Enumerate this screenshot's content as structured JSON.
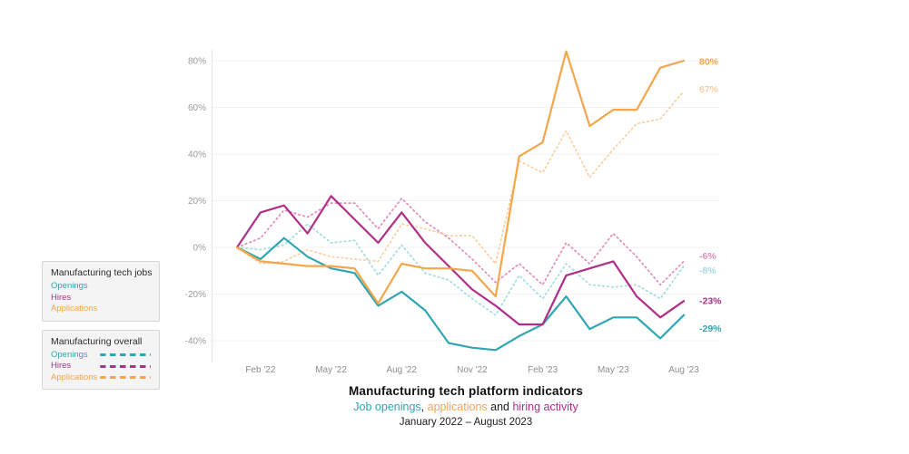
{
  "title_block": {
    "title": "Manufacturing tech platform indicators",
    "subtitle_parts": [
      {
        "text": "Job openings",
        "color": "#2fa6b1"
      },
      {
        "text": ", ",
        "color": "#1c1c1c"
      },
      {
        "text": "applications",
        "color": "#f5a54c"
      },
      {
        "text": " and ",
        "color": "#1c1c1c"
      },
      {
        "text": "hiring activity",
        "color": "#b02e88"
      }
    ],
    "date_range": "January 2022 – August 2023"
  },
  "legend": {
    "boxes": [
      {
        "title": "Manufacturing tech jobs",
        "items": [
          {
            "label": "Openings",
            "color": "#2fa6b1",
            "dashed": false
          },
          {
            "label": "Hires",
            "color": "#b02e88",
            "dashed": false
          },
          {
            "label": "Applications",
            "color": "#f5a54c",
            "dashed": false
          }
        ]
      },
      {
        "title": "Manufacturing overall",
        "items": [
          {
            "label": "Openings",
            "color": "#2fa6b1",
            "dashed": true
          },
          {
            "label": "Hires",
            "color": "#b02e88",
            "dashed": true
          },
          {
            "label": "Applications",
            "color": "#f5a54c",
            "dashed": true
          }
        ]
      }
    ]
  },
  "chart_data": {
    "type": "line",
    "x": [
      "Jan '22",
      "Feb '22",
      "Mar '22",
      "Apr '22",
      "May '22",
      "Jun '22",
      "Jul '22",
      "Aug '22",
      "Sep '22",
      "Oct '22",
      "Nov '22",
      "Dec '22",
      "Jan '23",
      "Feb '23",
      "Mar '23",
      "Apr '23",
      "May '23",
      "Jun '23",
      "Jul '23",
      "Aug '23"
    ],
    "x_ticks": [
      {
        "i": 1,
        "label": "Feb '22"
      },
      {
        "i": 4,
        "label": "May '22"
      },
      {
        "i": 7,
        "label": "Aug '22"
      },
      {
        "i": 10,
        "label": "Nov '22"
      },
      {
        "i": 13,
        "label": "Feb '23"
      },
      {
        "i": 16,
        "label": "May '23"
      },
      {
        "i": 19,
        "label": "Aug '23"
      }
    ],
    "y_ticks": [
      80,
      60,
      40,
      20,
      0,
      -20,
      -40
    ],
    "y_tick_suffix": "%",
    "ylim": [
      -50,
      90
    ],
    "grid": "horizontal",
    "legend_position": "left",
    "series": [
      {
        "name": "Manufacturing tech jobs — Openings",
        "style": "solid",
        "color": "#2fa6b1",
        "end_label": "-29%",
        "label_dy": 15,
        "values": [
          0,
          -5,
          4,
          -4,
          -9,
          -11,
          -25,
          -19,
          -27,
          -41,
          -43,
          -44,
          -38,
          -33,
          -21,
          -35,
          -30,
          -30,
          -39,
          -29
        ]
      },
      {
        "name": "Manufacturing tech jobs — Hires",
        "style": "solid",
        "color": "#b02e88",
        "end_label": "-23%",
        "label_dy": 0,
        "values": [
          0,
          15,
          18,
          6,
          22,
          12,
          2,
          15,
          2,
          -8,
          -18,
          -25,
          -33,
          -33,
          -12,
          -9,
          -6,
          -21,
          -30,
          -23
        ]
      },
      {
        "name": "Manufacturing tech jobs — Applications",
        "style": "solid",
        "color": "#f5a54c",
        "end_label": "80%",
        "label_dy": 1,
        "values": [
          0,
          -6,
          -7,
          -8,
          -8,
          -9,
          -24,
          -7,
          -9,
          -9,
          -10,
          -21,
          39,
          45,
          84,
          52,
          59,
          59,
          77,
          80
        ]
      },
      {
        "name": "Manufacturing overall — Openings",
        "style": "dotted",
        "color": "#a5dbe0",
        "end_label": "-8%",
        "label_dy": 5,
        "values": [
          0,
          -1,
          1,
          10,
          2,
          3,
          -12,
          1,
          -11,
          -14,
          -22,
          -29,
          -12,
          -22,
          -7,
          -16,
          -17,
          -16,
          -22,
          -8
        ]
      },
      {
        "name": "Manufacturing overall — Hires",
        "style": "dotted",
        "color": "#e18cbb",
        "end_label": "-6%",
        "label_dy": -6,
        "values": [
          0,
          4,
          16,
          13,
          19,
          19,
          8,
          21,
          11,
          4,
          -5,
          -15,
          -7,
          -16,
          2,
          -7,
          6,
          -4,
          -16,
          -6
        ]
      },
      {
        "name": "Manufacturing overall — Applications",
        "style": "dotted",
        "color": "#f9cfa0",
        "end_label": "67%",
        "label_dy": -2,
        "values": [
          0,
          -7,
          -6,
          -1,
          -4,
          -5,
          -6,
          10,
          8,
          5,
          5,
          -7,
          37,
          32,
          50,
          30,
          42,
          53,
          55,
          67
        ]
      }
    ]
  }
}
